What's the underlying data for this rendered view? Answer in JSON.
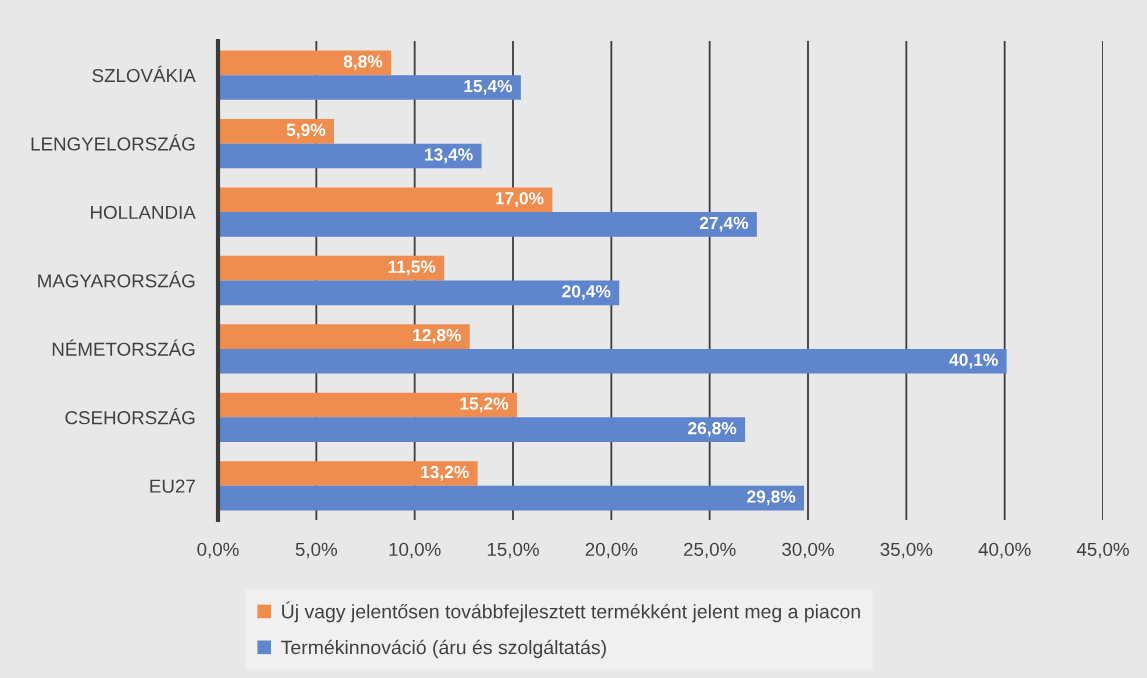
{
  "chart_data": {
    "type": "bar",
    "orientation": "horizontal",
    "categories": [
      "SZLOVÁKIA",
      "LENGYELORSZÁG",
      "HOLLANDIA",
      "MAGYARORSZÁG",
      "NÉMETORSZÁG",
      "CSEHORSZÁG",
      "EU27"
    ],
    "series": [
      {
        "name": "Új vagy jelentősen továbbfejlesztett termékként jelent meg a piacon",
        "color": "#ee8d4f",
        "values": [
          8.8,
          5.9,
          17.0,
          11.5,
          12.8,
          15.2,
          13.2
        ],
        "value_labels": [
          "8,8%",
          "5,9%",
          "17,0%",
          "11,5%",
          "12,8%",
          "15,2%",
          "13,2%"
        ]
      },
      {
        "name": "Termékinnováció (áru és szolgáltatás)",
        "color": "#5f85cc",
        "values": [
          15.4,
          13.4,
          27.4,
          20.4,
          40.1,
          26.8,
          29.8
        ],
        "value_labels": [
          "15,4%",
          "13,4%",
          "27,4%",
          "20,4%",
          "40,1%",
          "26,8%",
          "29,8%"
        ]
      }
    ],
    "xlim": [
      0,
      45
    ],
    "xticks": [
      {
        "value": 0,
        "label": "0,0%"
      },
      {
        "value": 5,
        "label": "5,0%"
      },
      {
        "value": 10,
        "label": "10,0%"
      },
      {
        "value": 15,
        "label": "15,0%"
      },
      {
        "value": 20,
        "label": "20,0%"
      },
      {
        "value": 25,
        "label": "25,0%"
      },
      {
        "value": 30,
        "label": "30,0%"
      },
      {
        "value": 35,
        "label": "35,0%"
      },
      {
        "value": 40,
        "label": "40,0%"
      },
      {
        "value": 45,
        "label": "45,0%"
      }
    ],
    "grid": "x",
    "legend": "bottom"
  }
}
